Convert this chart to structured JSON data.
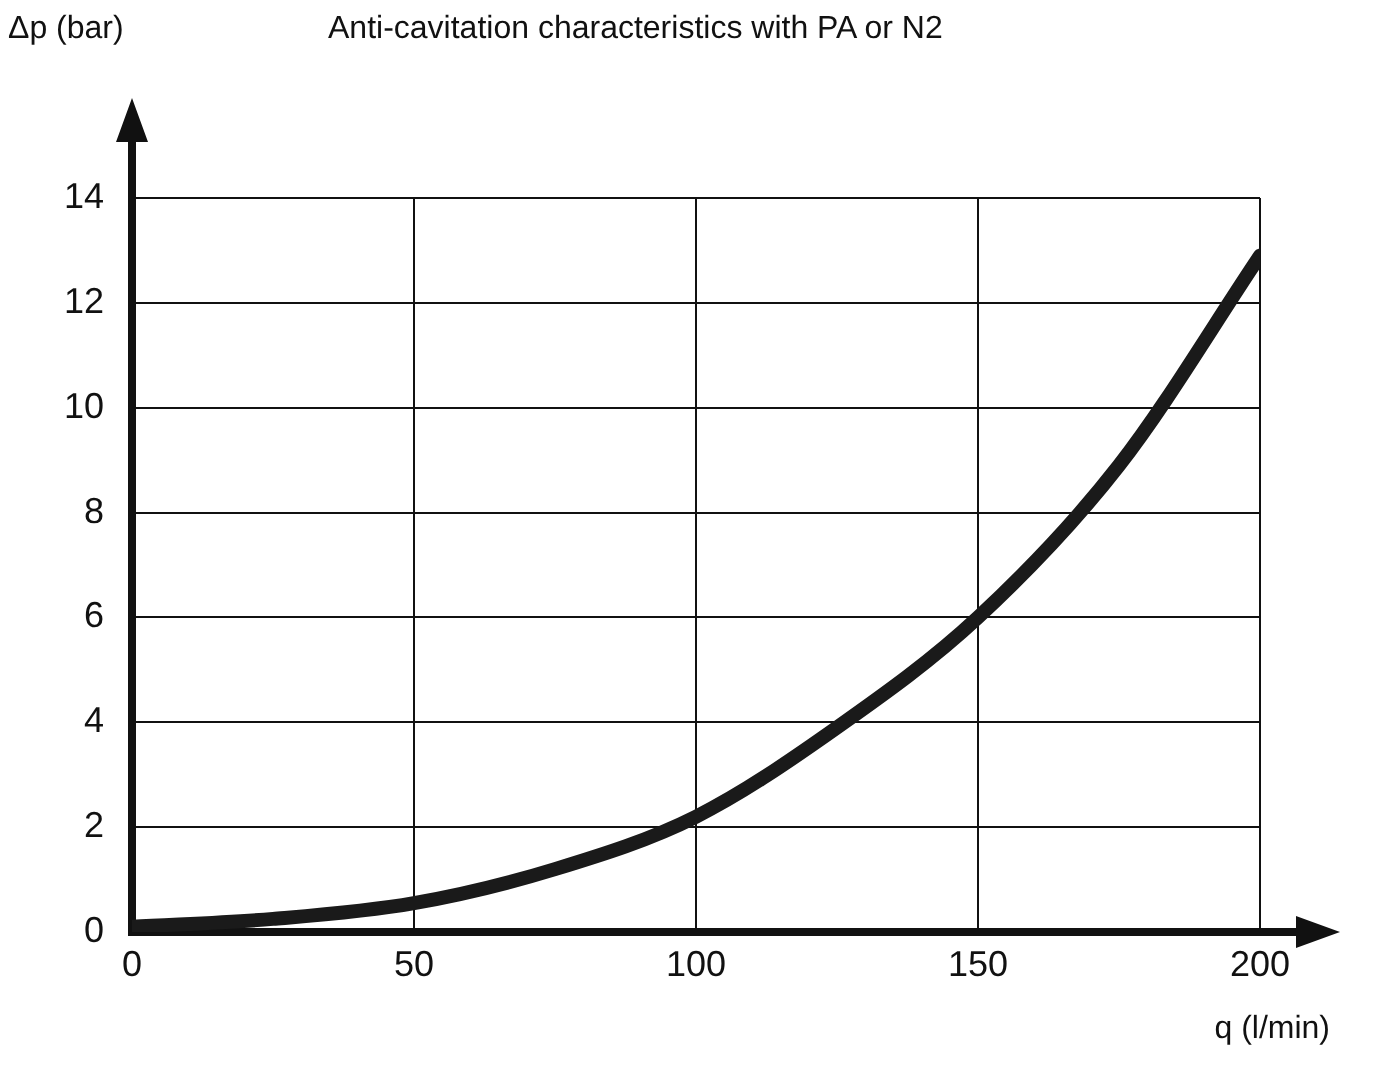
{
  "chart_data": {
    "type": "line",
    "title": "Anti-cavitation characteristics with PA or N2",
    "xlabel": "q (l/min)",
    "ylabel": "Δp  (bar)",
    "x": [
      0,
      25,
      50,
      75,
      100,
      125,
      150,
      175,
      200
    ],
    "series": [
      {
        "color": "#1a1a1a",
        "values": [
          0.1,
          0.25,
          0.55,
          1.2,
          2.2,
          3.9,
          6.0,
          8.9,
          12.9
        ]
      }
    ],
    "xlim": [
      0,
      200
    ],
    "xticks": [
      0,
      50,
      100,
      150,
      200
    ],
    "ylim": [
      0,
      14
    ],
    "yticks": [
      0,
      2,
      4,
      6,
      8,
      10,
      12,
      14
    ],
    "grid": true,
    "legend": false,
    "marker": "none",
    "line_style": "solid"
  }
}
